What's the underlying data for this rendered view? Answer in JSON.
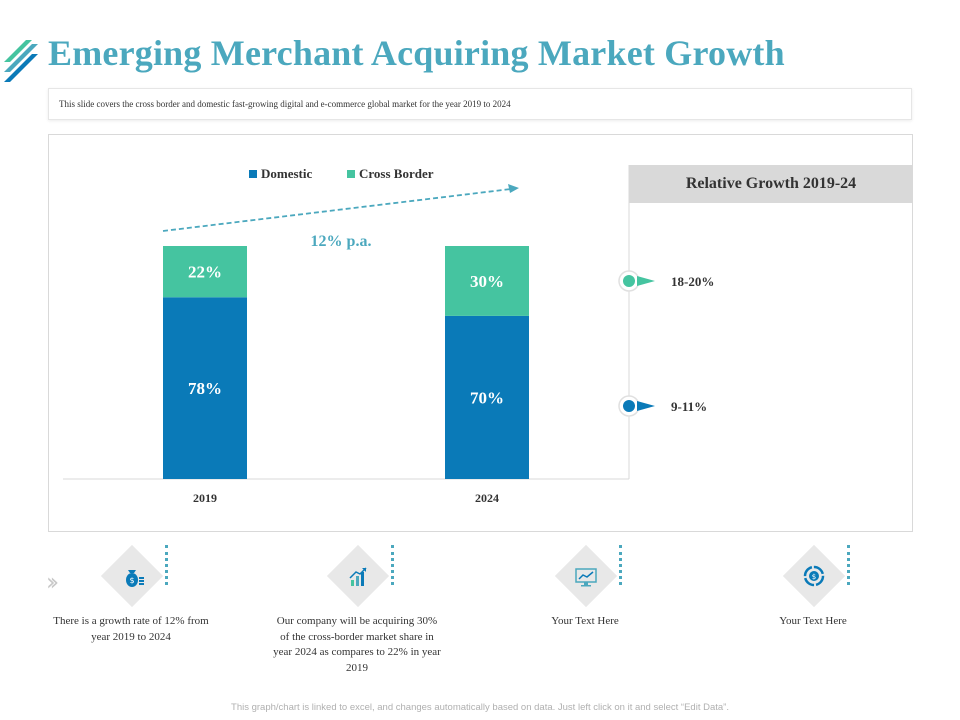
{
  "title": "Emerging Merchant Acquiring Market Growth",
  "subtitle": "This slide covers the cross border and domestic fast-growing digital and e-commerce global market for the year 2019 to 2024",
  "colors": {
    "domestic": "#0a7ab8",
    "cross_border": "#45c4a0",
    "accent": "#4ba8be"
  },
  "chart_data": {
    "type": "bar",
    "stacked": true,
    "categories": [
      "2019",
      "2024"
    ],
    "series": [
      {
        "name": "Domestic",
        "values": [
          78,
          70
        ],
        "labels": [
          "78%",
          "70%"
        ]
      },
      {
        "name": "Cross Border",
        "values": [
          22,
          30
        ],
        "labels": [
          "22%",
          "30%"
        ]
      }
    ],
    "ylim": [
      0,
      100
    ],
    "legend": "top",
    "grid": false,
    "annotation": "12% p.a."
  },
  "relative_growth": {
    "title": "Relative Growth  2019-24",
    "items": [
      {
        "label": "18-20%",
        "series": "Cross Border"
      },
      {
        "label": "9-11%",
        "series": "Domestic"
      }
    ]
  },
  "steps": [
    {
      "icon": "money-bag-icon",
      "text": "There is a growth  rate of 12% from year 2019 to 2024"
    },
    {
      "icon": "growth-chart-icon",
      "text": "Our company will be acquiring 30% of the cross-border market share in year 2024 as compares  to 22% in year 2019"
    },
    {
      "icon": "monitor-chart-icon",
      "text": "Your Text Here"
    },
    {
      "icon": "dollar-cycle-icon",
      "text": "Your Text Here"
    }
  ],
  "footer": "This graph/chart is linked to excel, and changes automatically based on data. Just left click on it and select “Edit Data”."
}
